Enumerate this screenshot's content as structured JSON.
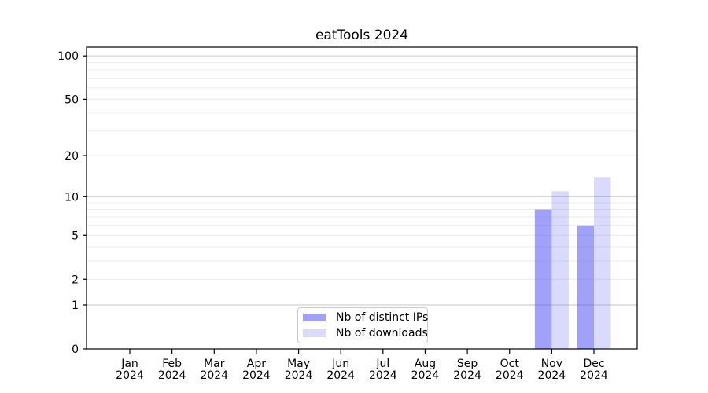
{
  "chart_data": {
    "type": "bar",
    "title": "eatTools 2024",
    "x_categories": [
      "Jan",
      "Feb",
      "Mar",
      "Apr",
      "May",
      "Jun",
      "Jul",
      "Aug",
      "Sep",
      "Oct",
      "Nov",
      "Dec"
    ],
    "x_year_label": "2024",
    "series": [
      {
        "name": "Nb of distinct IPs",
        "color_base": "#5858f4",
        "alpha": 0.56,
        "values": [
          0,
          0,
          0,
          0,
          0,
          0,
          0,
          0,
          0,
          0,
          8,
          6
        ]
      },
      {
        "name": "Nb of downloads",
        "color_base": "#5858f4",
        "alpha": 0.22,
        "values": [
          0,
          0,
          0,
          0,
          0,
          0,
          0,
          0,
          0,
          0,
          11,
          14
        ]
      }
    ],
    "y_axis": {
      "scale": "log1p",
      "ylim": [
        0,
        115
      ],
      "tick_values": [
        0,
        1,
        2,
        5,
        10,
        20,
        50,
        100
      ],
      "tick_labels": [
        "0",
        "1",
        "2",
        "5",
        "10",
        "20",
        "50",
        "100"
      ],
      "major_gridlines": [
        1,
        10,
        100
      ],
      "minor_gridlines": [
        2,
        3,
        4,
        5,
        6,
        7,
        8,
        9,
        20,
        30,
        40,
        50,
        60,
        70,
        80,
        90
      ],
      "major_grid_color": "#c6c6c6",
      "minor_grid_color": "#ececec"
    },
    "grid": "on",
    "legend_position": "bottom-center",
    "spine_color": "#000000",
    "background_color": "#ffffff"
  }
}
